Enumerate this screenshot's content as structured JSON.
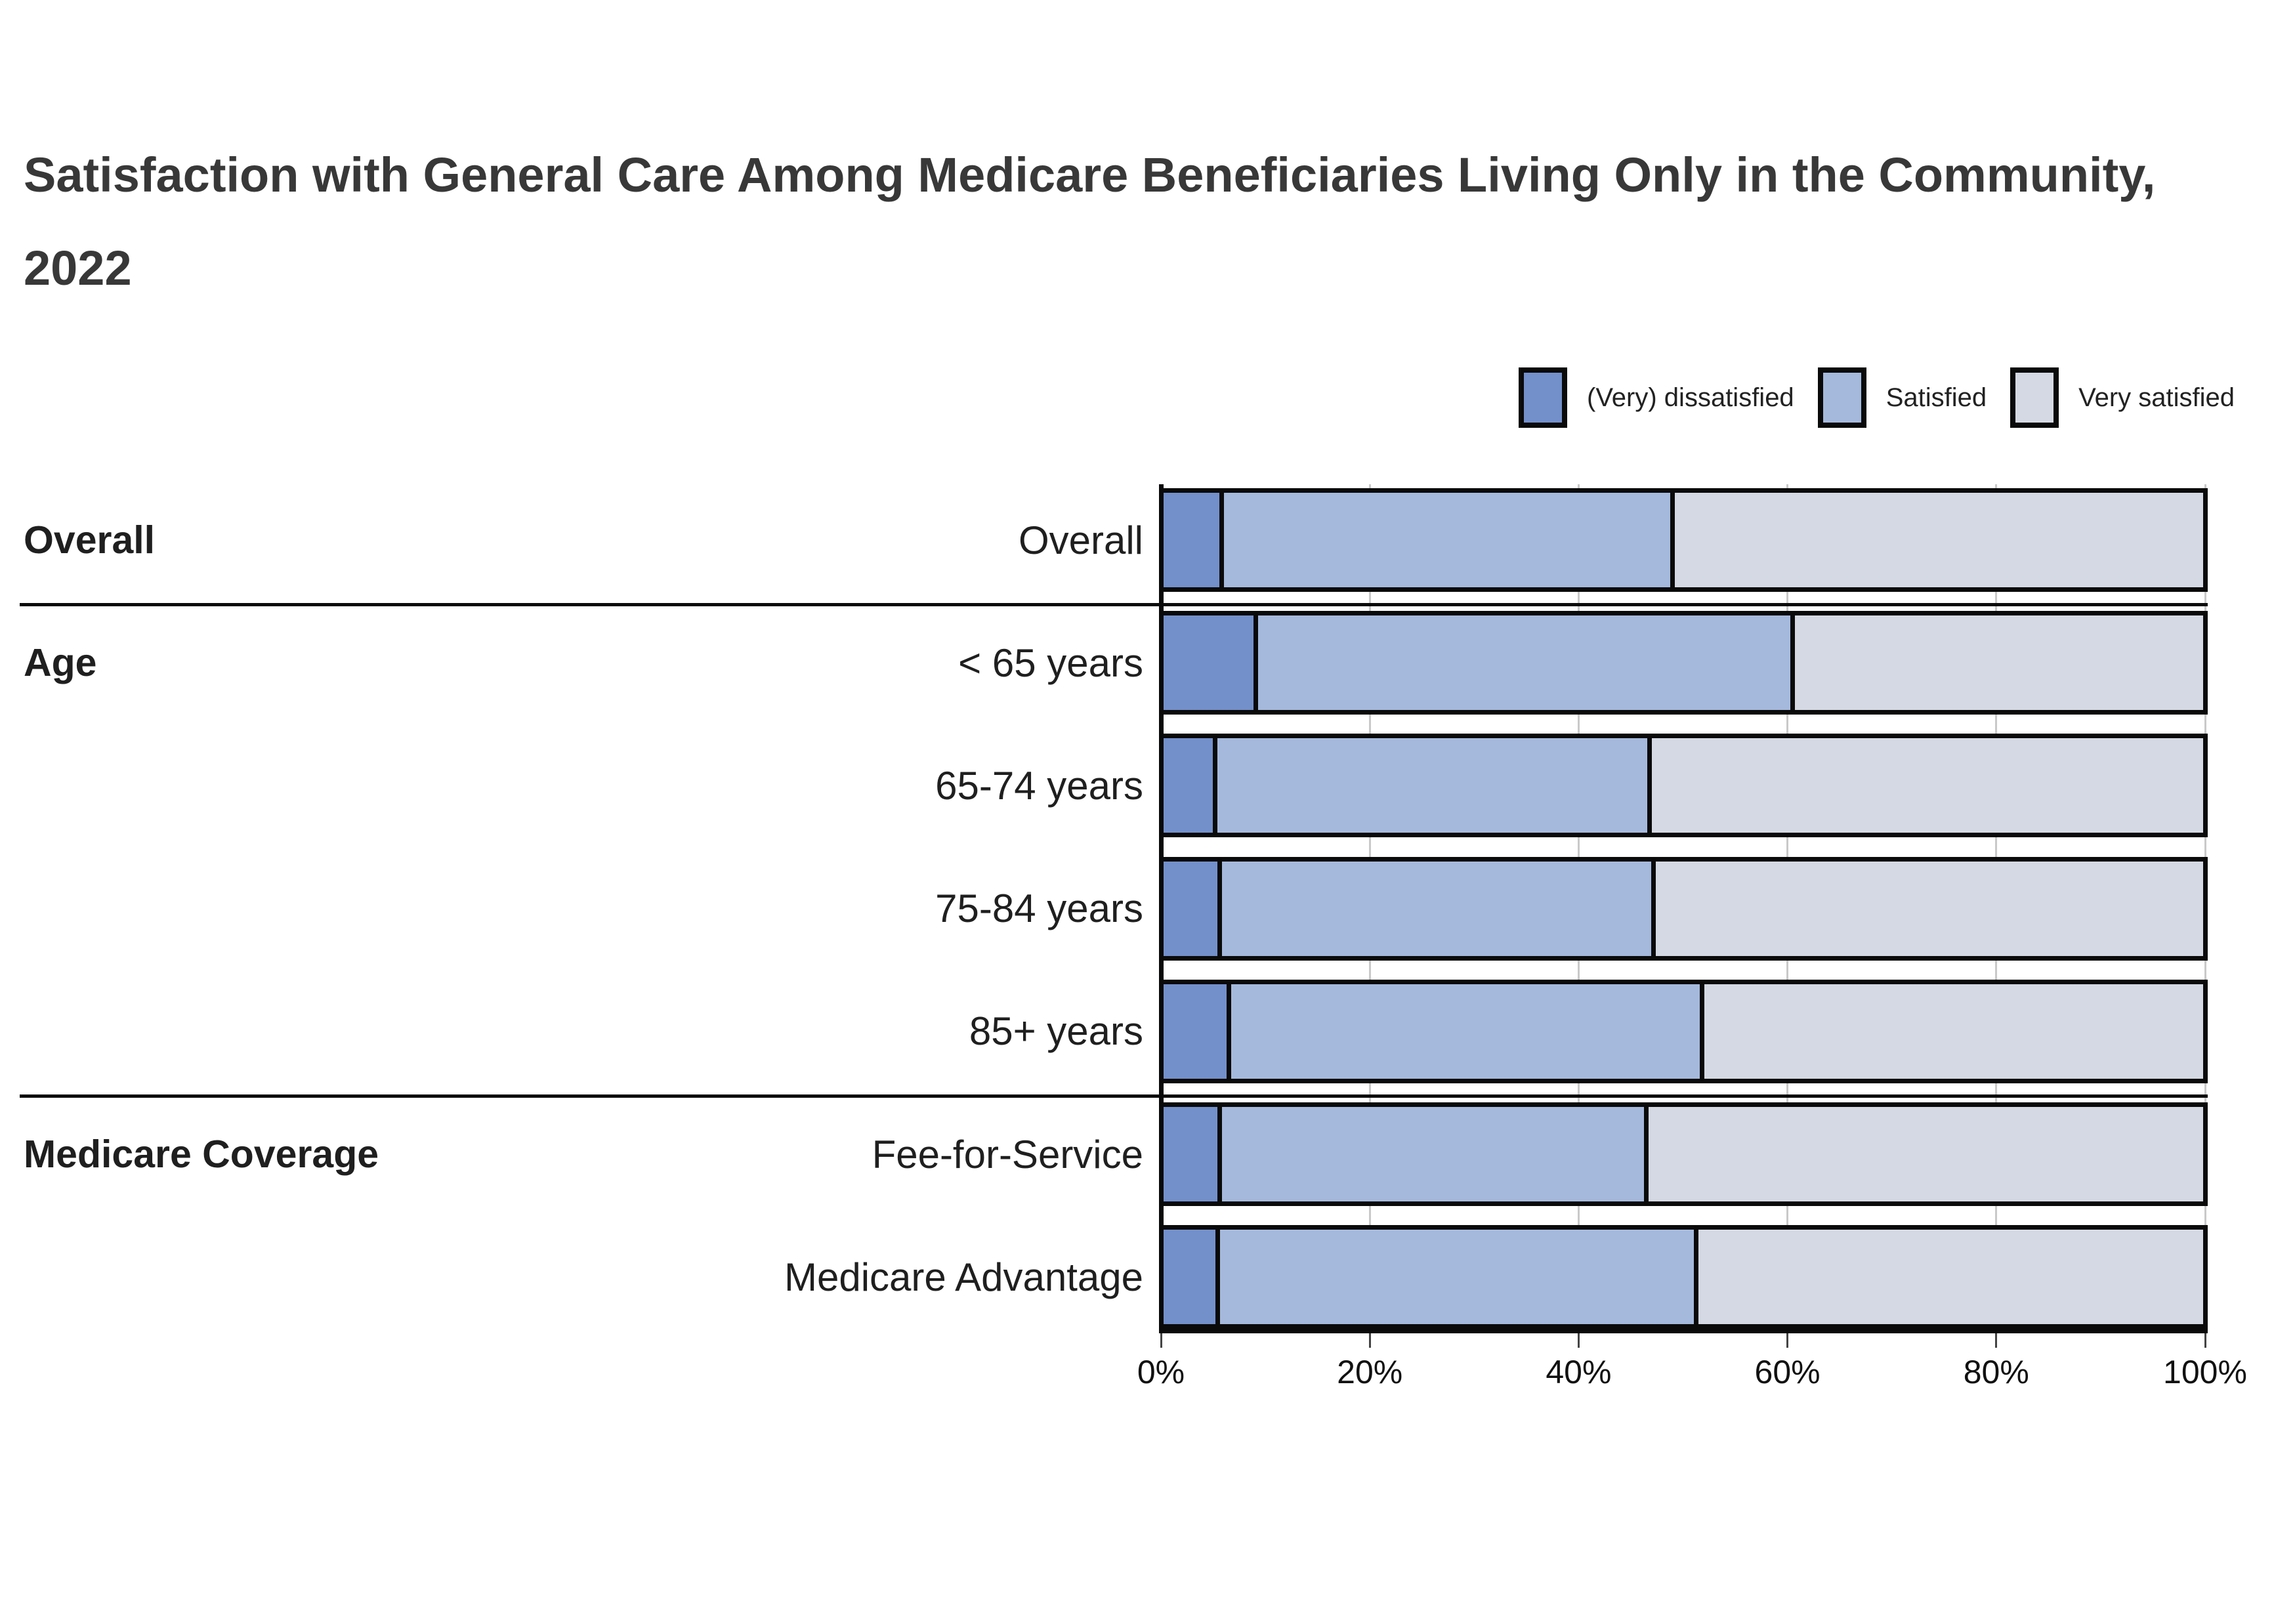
{
  "title": "Satisfaction with General Care Among Medicare Beneficiaries Living Only in the Community, 2022",
  "legend": [
    {
      "name": "dissatisfied",
      "label": "(Very) dissatisfied",
      "color": "#7390CB"
    },
    {
      "name": "satisfied",
      "label": "Satisfied",
      "color": "#A5B9DD"
    },
    {
      "name": "very-satisfied",
      "label": "Very satisfied",
      "color": "#D4D9E3"
    }
  ],
  "colors": {
    "dissatisfied": "#7390CB",
    "satisfied": "#A5B9DD",
    "very_satisfied": "#D4D9E3",
    "bar_border": "#0a0a0a",
    "gridline": "#c9c9c9",
    "title_text": "#383838"
  },
  "chart_data": {
    "type": "bar",
    "orientation": "horizontal",
    "stacked": true,
    "title": "Satisfaction with General Care Among Medicare Beneficiaries Living Only in the Community, 2022",
    "xlabel": "",
    "ylabel": "",
    "unit": "%",
    "xlim": [
      0,
      100
    ],
    "x_ticks": [
      "0%",
      "20%",
      "40%",
      "60%",
      "80%",
      "100%"
    ],
    "grid": true,
    "legend_position": "top-right",
    "series_names": [
      "(Very) dissatisfied",
      "Satisfied",
      "Very satisfied"
    ],
    "groups": [
      {
        "group": "Overall",
        "rows": [
          {
            "label": "Overall",
            "values": [
              5.4,
              43.3,
              51.3
            ]
          }
        ]
      },
      {
        "group": "Age",
        "rows": [
          {
            "label": "< 65 years",
            "values": [
              8.7,
              51.7,
              39.6
            ]
          },
          {
            "label": "65-74 years",
            "values": [
              4.8,
              41.7,
              53.5
            ]
          },
          {
            "label": "75-84 years",
            "values": [
              5.2,
              41.7,
              53.1
            ]
          },
          {
            "label": "85+ years",
            "values": [
              6.1,
              45.5,
              48.4
            ]
          }
        ]
      },
      {
        "group": "Medicare Coverage",
        "rows": [
          {
            "label": "Fee-for-Service",
            "values": [
              5.2,
              41.0,
              53.8
            ]
          },
          {
            "label": "Medicare Advantage",
            "values": [
              5.0,
              46.0,
              49.0
            ]
          }
        ]
      }
    ]
  }
}
